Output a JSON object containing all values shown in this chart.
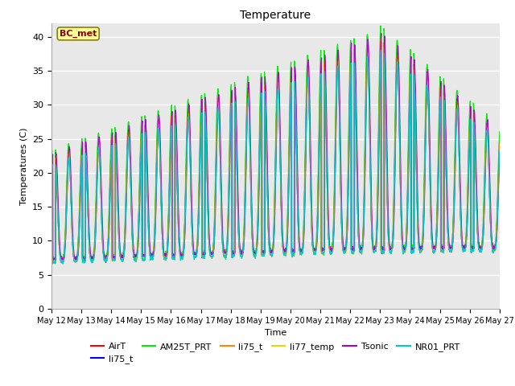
{
  "title": "Temperature",
  "xlabel": "Time",
  "ylabel": "Temperatures (C)",
  "ylim": [
    0,
    42
  ],
  "yticks": [
    0,
    5,
    10,
    15,
    20,
    25,
    30,
    35,
    40
  ],
  "annotation_text": "BC_met",
  "annotation_color": "#8B0000",
  "annotation_bg": "#FFFF99",
  "annotation_border": "#8B8000",
  "start_day": 12,
  "end_day": 27,
  "series": [
    {
      "name": "AirT",
      "color": "#FF0000"
    },
    {
      "name": "li75_t",
      "color": "#0000FF"
    },
    {
      "name": "AM25T_PRT",
      "color": "#00EE00"
    },
    {
      "name": "li75_t",
      "color": "#FF8800"
    },
    {
      "name": "li77_temp",
      "color": "#DDDD00"
    },
    {
      "name": "Tsonic",
      "color": "#AA00CC"
    },
    {
      "name": "NR01_PRT",
      "color": "#00CCCC"
    }
  ],
  "bg_color": "#E8E8E8",
  "fig_bg": "#FFFFFF",
  "legend_ncol_row1": 6,
  "grid_color": "#FFFFFF",
  "linewidth": 0.9
}
